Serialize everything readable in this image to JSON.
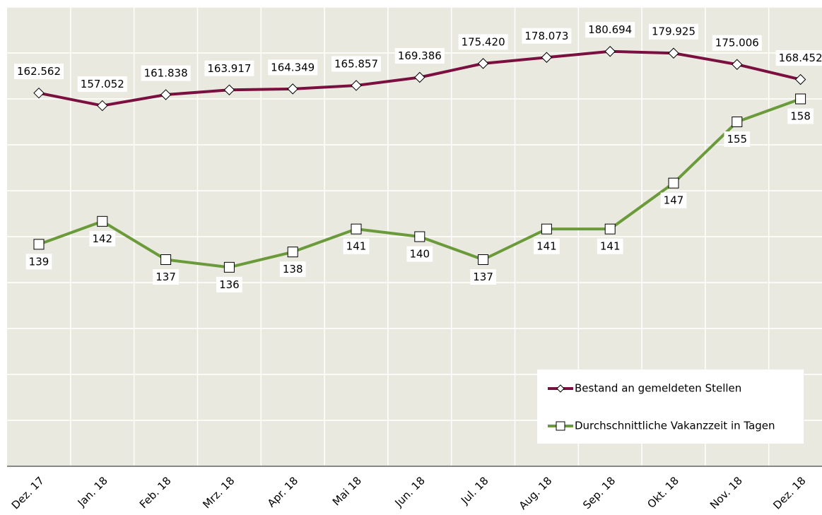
{
  "chart_data": {
    "type": "line",
    "categories": [
      "Dez. 17",
      "Jan. 18",
      "Feb. 18",
      "Mrz. 18",
      "Apr. 18",
      "Mai 18",
      "Jun. 18",
      "Jul. 18",
      "Aug. 18",
      "Sep. 18",
      "Okt. 18",
      "Nov. 18",
      "Dez. 18"
    ],
    "series": [
      {
        "name": "Bestand an gemeldeten Stellen",
        "color": "#7b0f3f",
        "marker": "diamond",
        "values": [
          162562,
          157052,
          161838,
          163917,
          164349,
          165857,
          169386,
          175420,
          178073,
          180694,
          179925,
          175006,
          168452
        ],
        "value_labels": [
          "162.562",
          "157.052",
          "161.838",
          "163.917",
          "164.349",
          "165.857",
          "169.386",
          "175.420",
          "178.073",
          "180.694",
          "179.925",
          "175.006",
          "168.452"
        ]
      },
      {
        "name": "Durchschnittliche Vakanzzeit in Tagen",
        "color": "#6a9a3a",
        "marker": "square",
        "axis": "y2",
        "values": [
          139,
          142,
          137,
          136,
          138,
          141,
          140,
          137,
          141,
          141,
          147,
          155,
          158
        ]
      }
    ],
    "ylim": [
      0,
      200000
    ],
    "yticks": [
      0,
      20000,
      40000,
      60000,
      80000,
      100000,
      120000,
      140000,
      160000,
      180000,
      200000
    ],
    "y2lim": [
      110,
      170
    ],
    "grid": true,
    "legend": "lower right"
  }
}
